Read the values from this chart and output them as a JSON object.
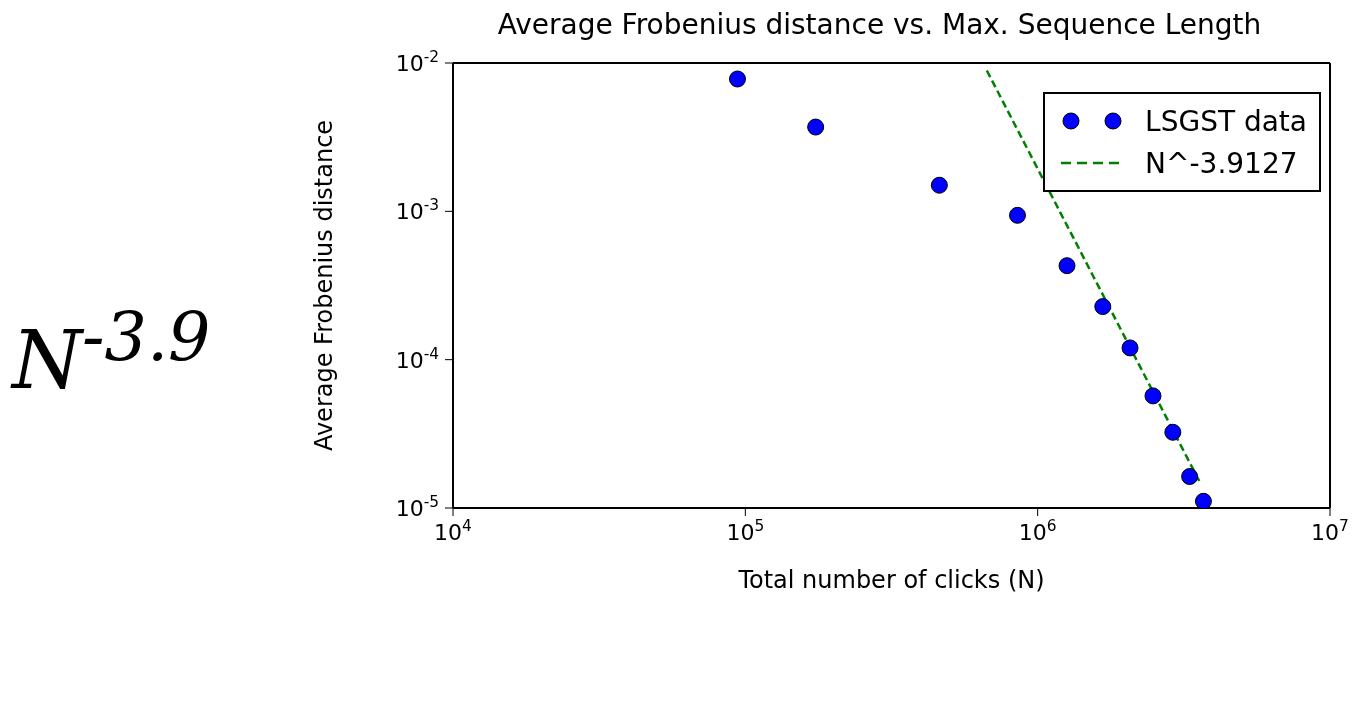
{
  "chart_data": {
    "type": "scatter",
    "title": "Average Frobenius distance vs. Max. Sequence Length",
    "xlabel": "Total number of clicks (N)",
    "ylabel": "Average Frobenius distance",
    "log": "xy",
    "legend": "top right",
    "marker": "circle",
    "xlim": [
      10000,
      10000000
    ],
    "xticks": [
      {
        "value": 10000,
        "label": "10$^{4}$"
      },
      {
        "value": 100000,
        "label": "10$^{5}$"
      },
      {
        "value": 1000000,
        "label": "10$^{6}$"
      },
      {
        "value": 10000000,
        "label": "10$^{7}$"
      }
    ],
    "ylim": [
      1e-05,
      0.01
    ],
    "yticks": [
      {
        "value": 1e-05,
        "label": "10$^{-5}$"
      },
      {
        "value": 0.0001,
        "label": "10$^{-4}$"
      },
      {
        "value": 0.001,
        "label": "10$^{-3}$"
      },
      {
        "value": 0.01,
        "label": "10$^{-2}$"
      }
    ],
    "annotations": [
      "N$^{-3.9}$"
    ],
    "series": [
      {
        "name": "LSGST data",
        "color": "#0000ff",
        "x": [
          94000,
          174000,
          461000,
          853000,
          1260000,
          1670000,
          2070000,
          2480000,
          2900000,
          3310000,
          3690000
        ],
        "values": [
          0.0078,
          0.0037,
          0.0015,
          0.00094,
          0.00043,
          0.000228,
          0.00012,
          5.7e-05,
          3.24e-05,
          1.63e-05,
          1.11e-05
        ]
      },
      {
        "name": "N^-3.9127",
        "type": "line",
        "color": "#008000",
        "line_style": "dashed",
        "marker": "none",
        "x": [
          670000,
          3570000
        ],
        "values": [
          0.0089,
          1.52e-05
        ]
      }
    ]
  }
}
